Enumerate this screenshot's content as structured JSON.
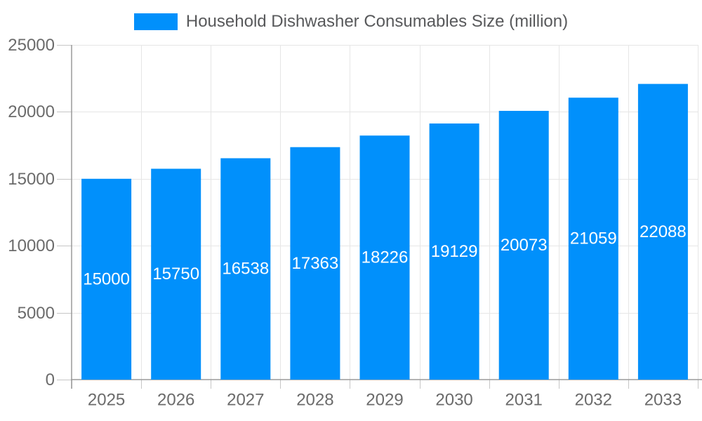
{
  "legend": {
    "label": "Household Dishwasher Consumables Size (million)"
  },
  "chart_data": {
    "type": "bar",
    "title": "Household Dishwasher Consumables Size (million)",
    "series_name": "Household Dishwasher Consumables Size (million)",
    "categories": [
      "2025",
      "2026",
      "2027",
      "2028",
      "2029",
      "2030",
      "2031",
      "2032",
      "2033"
    ],
    "values": [
      15000,
      15750,
      16538,
      17363,
      18226,
      19129,
      20073,
      21059,
      22088
    ],
    "data_labels": [
      "15000",
      "15750",
      "16538",
      "17363",
      "18226",
      "19129",
      "20073",
      "21059",
      "22088"
    ],
    "xlabel": "",
    "ylabel": "",
    "ylim": [
      0,
      25000
    ],
    "yticks": [
      0,
      5000,
      10000,
      15000,
      20000,
      25000
    ],
    "ytick_labels": [
      "0",
      "5000",
      "10000",
      "15000",
      "20000",
      "25000"
    ],
    "grid": true,
    "legend_position": "top",
    "colors": {
      "bar": "#0190FB",
      "grid": "#e6e6e6",
      "axis": "#9a9a9a",
      "tick": "#c6c6c6",
      "axis_label": "#6b6b6b",
      "data_label": "#ffffff"
    }
  }
}
